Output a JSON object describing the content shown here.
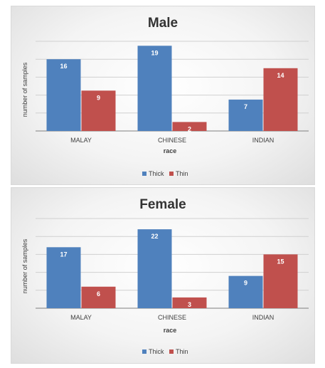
{
  "chart_data": [
    {
      "type": "bar",
      "title": "Male",
      "categories": [
        "MALAY",
        "CHINESE",
        "INDIAN"
      ],
      "series": [
        {
          "name": "Thick",
          "values": [
            16,
            19,
            7
          ],
          "color": "#4f81bd"
        },
        {
          "name": "Thin",
          "values": [
            9,
            2,
            14
          ],
          "color": "#c0504d"
        }
      ],
      "xlabel": "race",
      "ylabel": "number of samples",
      "ylim": [
        0,
        20
      ],
      "grid": true,
      "legend": "bottom"
    },
    {
      "type": "bar",
      "title": "Female",
      "categories": [
        "MALAY",
        "CHINESE",
        "INDIAN"
      ],
      "series": [
        {
          "name": "Thick",
          "values": [
            17,
            22,
            9
          ],
          "color": "#4f81bd"
        },
        {
          "name": "Thin",
          "values": [
            6,
            3,
            15
          ],
          "color": "#c0504d"
        }
      ],
      "xlabel": "race",
      "ylabel": "number of samples",
      "ylim": [
        0,
        25
      ],
      "grid": true,
      "legend": "bottom"
    }
  ]
}
